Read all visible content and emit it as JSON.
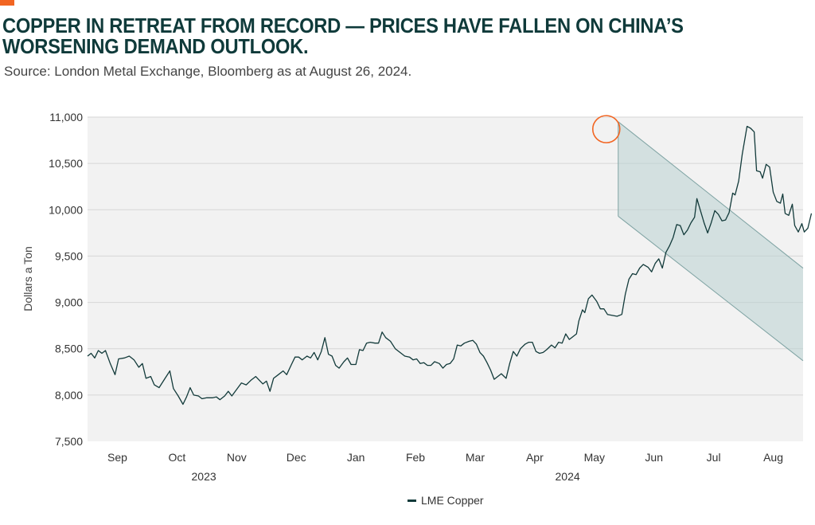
{
  "header": {
    "title": "COPPER IN RETREAT FROM RECORD — PRICES HAVE FALLEN ON CHINA’S WORSENING DEMAND OUTLOOK.",
    "source": "Source: London Metal Exchange, Bloomberg as at August 26, 2024."
  },
  "colors": {
    "accent": "#f26522",
    "line": "#123a3a",
    "channel_fill": "#b9d1d1",
    "channel_edge": "#7fa3a3",
    "plot_bg": "#f2f2f2",
    "grid": "#d6d6d6"
  },
  "chart_data": {
    "type": "line",
    "title": "COPPER IN RETREAT FROM RECORD — PRICES HAVE FALLEN ON CHINA’S WORSENING DEMAND OUTLOOK.",
    "ylabel": "Dollars a Ton",
    "xlabel": "",
    "ylim": [
      7500,
      11000
    ],
    "yticks": [
      7500,
      8000,
      8500,
      9000,
      9500,
      10000,
      10500,
      11000
    ],
    "ytick_labels": [
      "7,500",
      "8,000",
      "8,500",
      "9,000",
      "9,500",
      "10,000",
      "10,500",
      "11,000"
    ],
    "x_month_index_range": [
      -0.5,
      11.5
    ],
    "month_labels": [
      "Sep",
      "Oct",
      "Nov",
      "Dec",
      "Jan",
      "Feb",
      "Mar",
      "Apr",
      "May",
      "Jun",
      "Jul",
      "Aug"
    ],
    "year_labels": [
      {
        "label": "2023",
        "month_index": 1.45
      },
      {
        "label": "2024",
        "month_index": 7.55
      }
    ],
    "legend": [
      {
        "name": "LME Copper",
        "color": "#123a3a"
      }
    ],
    "legend_position": "bottom-center",
    "annotations": {
      "peak_circle": {
        "month_index": 8.2,
        "value": 10870
      },
      "decline_channel": {
        "upper": [
          [
            8.4,
            10950
          ],
          [
            11.5,
            9370
          ]
        ],
        "lower": [
          [
            8.4,
            9930
          ],
          [
            11.5,
            8370
          ]
        ]
      }
    },
    "series": [
      {
        "name": "LME Copper",
        "points": [
          [
            -0.5,
            8420
          ],
          [
            -0.44,
            8450
          ],
          [
            -0.38,
            8400
          ],
          [
            -0.32,
            8480
          ],
          [
            -0.26,
            8450
          ],
          [
            -0.2,
            8480
          ],
          [
            -0.12,
            8340
          ],
          [
            -0.04,
            8220
          ],
          [
            0.02,
            8390
          ],
          [
            0.12,
            8400
          ],
          [
            0.2,
            8420
          ],
          [
            0.28,
            8380
          ],
          [
            0.36,
            8300
          ],
          [
            0.42,
            8340
          ],
          [
            0.48,
            8180
          ],
          [
            0.56,
            8200
          ],
          [
            0.62,
            8110
          ],
          [
            0.7,
            8080
          ],
          [
            0.8,
            8180
          ],
          [
            0.88,
            8260
          ],
          [
            0.94,
            8070
          ],
          [
            1.02,
            7990
          ],
          [
            1.1,
            7900
          ],
          [
            1.16,
            7980
          ],
          [
            1.22,
            8080
          ],
          [
            1.28,
            8000
          ],
          [
            1.36,
            7990
          ],
          [
            1.42,
            7960
          ],
          [
            1.5,
            7970
          ],
          [
            1.6,
            7970
          ],
          [
            1.66,
            7980
          ],
          [
            1.72,
            7950
          ],
          [
            1.8,
            7990
          ],
          [
            1.86,
            8040
          ],
          [
            1.92,
            7990
          ],
          [
            2.0,
            8060
          ],
          [
            2.08,
            8130
          ],
          [
            2.16,
            8110
          ],
          [
            2.24,
            8160
          ],
          [
            2.32,
            8200
          ],
          [
            2.38,
            8160
          ],
          [
            2.44,
            8120
          ],
          [
            2.5,
            8150
          ],
          [
            2.56,
            8040
          ],
          [
            2.62,
            8180
          ],
          [
            2.7,
            8220
          ],
          [
            2.78,
            8260
          ],
          [
            2.84,
            8220
          ],
          [
            2.92,
            8330
          ],
          [
            2.98,
            8410
          ],
          [
            3.04,
            8410
          ],
          [
            3.1,
            8380
          ],
          [
            3.18,
            8420
          ],
          [
            3.24,
            8400
          ],
          [
            3.3,
            8460
          ],
          [
            3.36,
            8380
          ],
          [
            3.42,
            8470
          ],
          [
            3.48,
            8620
          ],
          [
            3.54,
            8440
          ],
          [
            3.6,
            8420
          ],
          [
            3.66,
            8320
          ],
          [
            3.72,
            8290
          ],
          [
            3.8,
            8360
          ],
          [
            3.86,
            8400
          ],
          [
            3.92,
            8330
          ],
          [
            4.0,
            8330
          ],
          [
            4.06,
            8490
          ],
          [
            4.12,
            8480
          ],
          [
            4.18,
            8560
          ],
          [
            4.24,
            8570
          ],
          [
            4.32,
            8560
          ],
          [
            4.38,
            8560
          ],
          [
            4.44,
            8680
          ],
          [
            4.5,
            8620
          ],
          [
            4.58,
            8580
          ],
          [
            4.66,
            8500
          ],
          [
            4.74,
            8460
          ],
          [
            4.82,
            8420
          ],
          [
            4.9,
            8410
          ],
          [
            4.96,
            8380
          ],
          [
            5.02,
            8390
          ],
          [
            5.08,
            8340
          ],
          [
            5.14,
            8350
          ],
          [
            5.2,
            8320
          ],
          [
            5.26,
            8320
          ],
          [
            5.32,
            8360
          ],
          [
            5.4,
            8340
          ],
          [
            5.46,
            8290
          ],
          [
            5.52,
            8330
          ],
          [
            5.58,
            8340
          ],
          [
            5.64,
            8390
          ],
          [
            5.7,
            8540
          ],
          [
            5.76,
            8530
          ],
          [
            5.82,
            8560
          ],
          [
            5.9,
            8580
          ],
          [
            5.96,
            8590
          ],
          [
            6.02,
            8550
          ],
          [
            6.08,
            8460
          ],
          [
            6.14,
            8420
          ],
          [
            6.2,
            8350
          ],
          [
            6.26,
            8270
          ],
          [
            6.32,
            8170
          ],
          [
            6.38,
            8200
          ],
          [
            6.44,
            8230
          ],
          [
            6.52,
            8180
          ],
          [
            6.58,
            8340
          ],
          [
            6.64,
            8470
          ],
          [
            6.7,
            8420
          ],
          [
            6.76,
            8500
          ],
          [
            6.84,
            8550
          ],
          [
            6.9,
            8570
          ],
          [
            6.96,
            8570
          ],
          [
            7.02,
            8470
          ],
          [
            7.08,
            8450
          ],
          [
            7.14,
            8460
          ],
          [
            7.2,
            8490
          ],
          [
            7.28,
            8540
          ],
          [
            7.34,
            8510
          ],
          [
            7.4,
            8570
          ],
          [
            7.46,
            8560
          ],
          [
            7.52,
            8660
          ],
          [
            7.58,
            8600
          ],
          [
            7.64,
            8630
          ],
          [
            7.7,
            8660
          ],
          [
            7.74,
            8800
          ],
          [
            7.8,
            8920
          ],
          [
            7.84,
            8890
          ],
          [
            7.9,
            9040
          ],
          [
            7.96,
            9080
          ],
          [
            8.04,
            9010
          ],
          [
            8.1,
            8930
          ],
          [
            8.16,
            8930
          ],
          [
            8.22,
            8870
          ],
          [
            8.3,
            8860
          ],
          [
            8.38,
            8850
          ],
          [
            8.46,
            8870
          ],
          [
            8.52,
            9090
          ],
          [
            8.58,
            9250
          ],
          [
            8.64,
            9310
          ],
          [
            8.7,
            9300
          ],
          [
            8.76,
            9370
          ],
          [
            8.82,
            9410
          ],
          [
            8.9,
            9380
          ],
          [
            8.96,
            9330
          ],
          [
            9.02,
            9420
          ],
          [
            9.08,
            9470
          ],
          [
            9.14,
            9370
          ],
          [
            9.2,
            9540
          ],
          [
            9.26,
            9610
          ],
          [
            9.32,
            9700
          ],
          [
            9.38,
            9840
          ],
          [
            9.44,
            9830
          ],
          [
            9.5,
            9730
          ],
          [
            9.56,
            9780
          ],
          [
            9.62,
            9860
          ],
          [
            9.68,
            9920
          ],
          [
            9.72,
            10120
          ],
          [
            9.78,
            9990
          ],
          [
            9.84,
            9860
          ],
          [
            9.9,
            9750
          ],
          [
            9.96,
            9860
          ],
          [
            10.02,
            9990
          ],
          [
            10.08,
            9950
          ],
          [
            10.14,
            9880
          ],
          [
            10.2,
            9890
          ],
          [
            10.26,
            9970
          ],
          [
            10.32,
            10180
          ],
          [
            10.36,
            10160
          ],
          [
            10.42,
            10310
          ],
          [
            10.48,
            10600
          ],
          [
            10.52,
            10750
          ],
          [
            10.56,
            10900
          ],
          [
            10.62,
            10880
          ],
          [
            10.68,
            10840
          ],
          [
            10.72,
            10420
          ],
          [
            10.78,
            10410
          ],
          [
            10.82,
            10340
          ],
          [
            10.88,
            10490
          ],
          [
            10.94,
            10460
          ],
          [
            11.0,
            10190
          ],
          [
            11.06,
            10090
          ],
          [
            11.12,
            10070
          ],
          [
            11.16,
            10170
          ],
          [
            11.2,
            9960
          ],
          [
            11.26,
            9940
          ],
          [
            11.32,
            10060
          ],
          [
            11.36,
            9830
          ],
          [
            11.42,
            9760
          ],
          [
            11.48,
            9850
          ],
          [
            11.52,
            9760
          ],
          [
            11.58,
            9800
          ],
          [
            11.64,
            9960
          ]
        ]
      }
    ]
  },
  "legend": {
    "label": "LME Copper"
  }
}
